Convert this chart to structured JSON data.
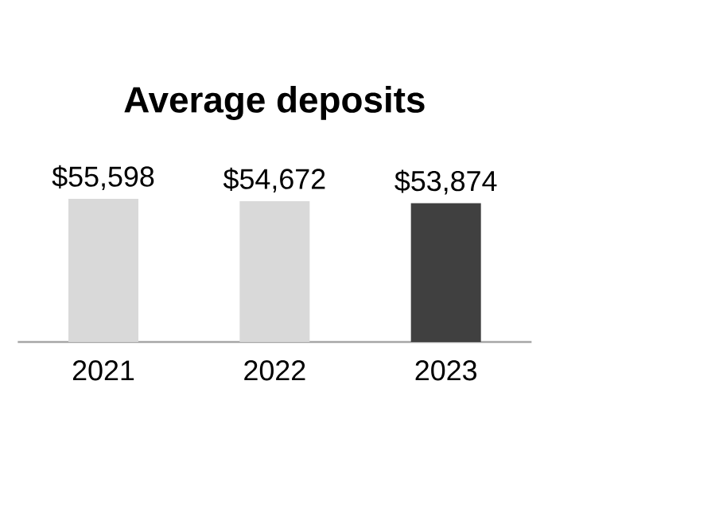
{
  "chart_data": {
    "type": "bar",
    "title": "Average deposits",
    "categories": [
      "2021",
      "2022",
      "2023"
    ],
    "values": [
      55598,
      54672,
      53874
    ],
    "colors": [
      "#d9d9d9",
      "#d9d9d9",
      "#404040"
    ],
    "value_labels": [
      "$55,598",
      "$54,672",
      "$53,874"
    ]
  }
}
